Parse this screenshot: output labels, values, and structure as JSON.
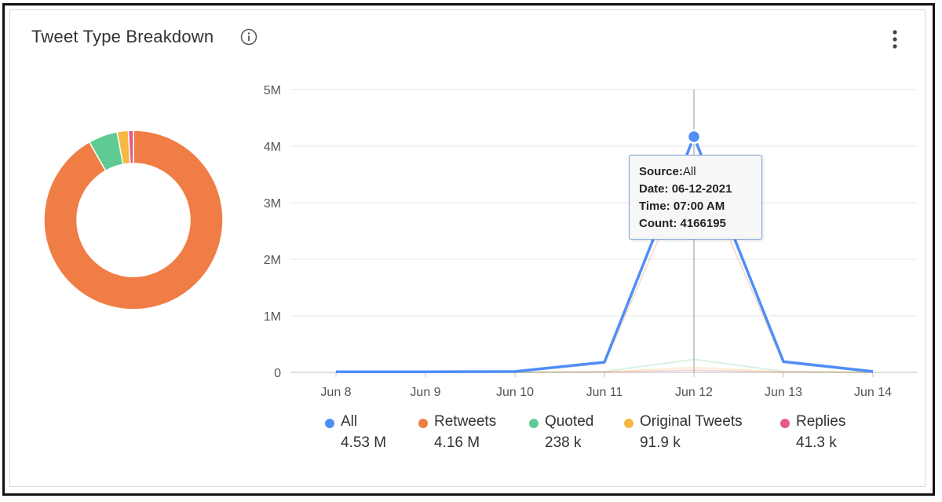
{
  "title": "Tweet Type Breakdown",
  "icons": {
    "info": "info-icon",
    "menu": "more-vertical-icon"
  },
  "tooltip": {
    "source_label": "Source:",
    "source_value": "All",
    "date_label": "Date:",
    "date_value": "06-12-2021",
    "time_label": "Time:",
    "time_value": "07:00 AM",
    "count_label": "Count:",
    "count_value": "4166195"
  },
  "legend": [
    {
      "label": "All",
      "value": "4.53 M",
      "color": "#4f8ef7"
    },
    {
      "label": "Retweets",
      "value": "4.16 M",
      "color": "#ef7d45"
    },
    {
      "label": "Quoted",
      "value": "238 k",
      "color": "#5ecb95"
    },
    {
      "label": "Original Tweets",
      "value": "91.9 k",
      "color": "#f5b942"
    },
    {
      "label": "Replies",
      "value": "41.3 k",
      "color": "#e55a85"
    }
  ],
  "chart_data": [
    {
      "type": "pie",
      "donut": true,
      "categories": [
        "Retweets",
        "Quoted",
        "Original Tweets",
        "Replies"
      ],
      "values": [
        4160000,
        238000,
        91900,
        41300
      ],
      "colors": [
        "#ef7d45",
        "#5ecb95",
        "#f5b942",
        "#e55a85"
      ]
    },
    {
      "type": "line",
      "x": [
        "Jun 8",
        "Jun 9",
        "Jun 10",
        "Jun 11",
        "Jun 12",
        "Jun 13",
        "Jun 14"
      ],
      "y_ticks": [
        "0",
        "1M",
        "2M",
        "3M",
        "4M",
        "5M"
      ],
      "ylim": [
        0,
        5000000
      ],
      "grid": true,
      "series": [
        {
          "name": "All",
          "color": "#4f8ef7",
          "values": [
            10000,
            10000,
            15000,
            180000,
            4166195,
            190000,
            15000
          ]
        },
        {
          "name": "Retweets",
          "color": "#ef7d45",
          "values": [
            8000,
            8000,
            12000,
            160000,
            3800000,
            170000,
            12000
          ]
        },
        {
          "name": "Quoted",
          "color": "#5ecb95",
          "values": [
            1000,
            1000,
            2000,
            15000,
            230000,
            18000,
            2000
          ]
        },
        {
          "name": "Original Tweets",
          "color": "#f5b942",
          "values": [
            800,
            800,
            1000,
            8000,
            85000,
            8000,
            1000
          ]
        },
        {
          "name": "Replies",
          "color": "#e55a85",
          "values": [
            300,
            300,
            500,
            4000,
            38000,
            4000,
            500
          ]
        }
      ],
      "highlight": {
        "series": "All",
        "x": "Jun 12",
        "value": 4166195
      }
    }
  ]
}
